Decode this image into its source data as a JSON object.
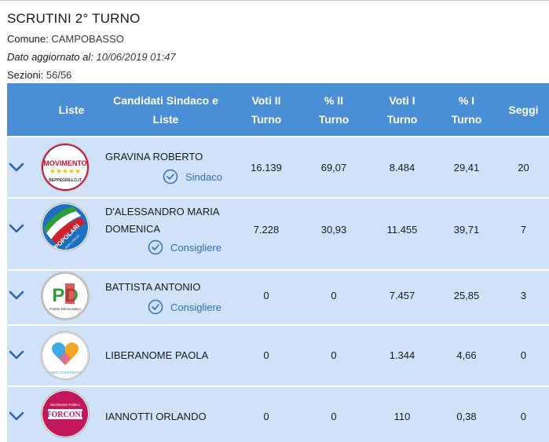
{
  "page": {
    "title": "SCRUTINI 2° TURNO",
    "comune_label": "Comune:",
    "comune_value": "CAMPOBASSO",
    "updated_label": "Dato aggiornato al:",
    "updated_value": "10/06/2019 01:47",
    "sezioni_label": "Sezioni:",
    "sezioni_value": "56/56"
  },
  "table": {
    "headers": {
      "liste": "Liste",
      "candidati_line1": "Candidati Sindaco e",
      "candidati_line2": "Liste",
      "voti2_line1": "Voti II",
      "voti2_line2": "Turno",
      "perc2_line1": "% II",
      "perc2_line2": "Turno",
      "voti1_line1": "Voti I",
      "voti1_line2": "Turno",
      "perc1_line1": "% I",
      "perc1_line2": "Turno",
      "seggi": "Seggi"
    },
    "rows": [
      {
        "name_line1": "GRAVINA ROBERTO",
        "name_line2": "",
        "role": "Sindaco",
        "voti2": "16.139",
        "perc2": "69,07",
        "voti1": "8.484",
        "perc1": "29,41",
        "seggi": "20",
        "logo_text": "MOVIMENTO",
        "logo_sub": "BEPPEGRILLO.IT"
      },
      {
        "name_line1": "D'ALESSANDRO MARIA",
        "name_line2": "DOMENICA",
        "role": "Consigliere",
        "voti2": "7.228",
        "perc2": "30,93",
        "voti1": "11.455",
        "perc1": "39,71",
        "seggi": "7",
        "logo_text": "POPOLARI",
        "logo_sub": "PER L'ITALIA"
      },
      {
        "name_line1": "BATTISTA ANTONIO",
        "name_line2": "",
        "role": "Consigliere",
        "voti2": "0",
        "perc2": "0",
        "voti1": "7.457",
        "perc1": "25,85",
        "seggi": "3",
        "logo_text": "PD",
        "logo_sub": "Partito Democratico"
      },
      {
        "name_line1": "LIBERANOME PAOLA",
        "name_line2": "",
        "role": "",
        "voti2": "0",
        "perc2": "0",
        "voti1": "1.344",
        "perc1": "4,66",
        "seggi": "0",
        "logo_text": "IO AMO CAMPOBASSO",
        "logo_sub": ""
      },
      {
        "name_line1": "IANNOTTI ORLANDO",
        "name_line2": "",
        "role": "",
        "voti2": "0",
        "perc2": "0",
        "voti1": "110",
        "perc1": "0,38",
        "seggi": "0",
        "logo_text": "FORCONI",
        "logo_sub": "Movimento Politico"
      }
    ]
  },
  "colors": {
    "header_bg": "#4a8fd6",
    "row_bg": "#cfe2f8",
    "accent": "#2f6fb8"
  },
  "icons": {
    "expand": "chevron-down-icon",
    "check": "check-circle-icon"
  }
}
